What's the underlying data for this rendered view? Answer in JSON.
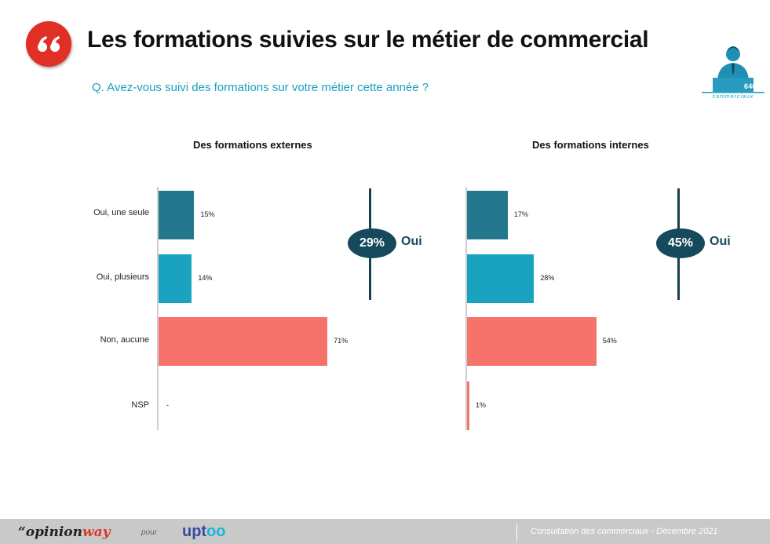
{
  "header": {
    "title": "Les formations suivies sur le métier de commercial",
    "question": "Q. Avez-vous suivi des formations sur votre métier cette année ?"
  },
  "badge": {
    "icon": "quote-icon",
    "color": "#e12f25"
  },
  "logo": {
    "icon": "business-person-icon",
    "count": "646",
    "caption": "commerciaux"
  },
  "chart_data": [
    {
      "type": "bar",
      "orientation": "horizontal",
      "title": "Des formations externes",
      "categories": [
        "Oui, une seule",
        "Oui, plusieurs",
        "Non, aucune",
        "NSP"
      ],
      "values": [
        15,
        14,
        71,
        null
      ],
      "value_labels": [
        "15%",
        "14%",
        "71%",
        "-"
      ],
      "colors": [
        "#24788d",
        "#1aa3c0",
        "#f5736a",
        "#f5736a"
      ],
      "xlim": [
        0,
        100
      ],
      "summary": {
        "value": "29%",
        "label": "Oui"
      }
    },
    {
      "type": "bar",
      "orientation": "horizontal",
      "title": "Des formations internes",
      "categories": [
        "Oui, une seule",
        "Oui, plusieurs",
        "Non, aucune",
        "NSP"
      ],
      "values": [
        17,
        28,
        54,
        1
      ],
      "value_labels": [
        "17%",
        "28%",
        "54%",
        "1%"
      ],
      "colors": [
        "#24788d",
        "#1aa3c0",
        "#f5736a",
        "#f5736a"
      ],
      "xlim": [
        0,
        100
      ],
      "summary": {
        "value": "45%",
        "label": "Oui"
      }
    }
  ],
  "footer": {
    "brand1_part1": "“opinion",
    "brand1_part2": "way",
    "pour": "pour",
    "brand2_part1": "upt",
    "brand2_part2": "oo",
    "consultation": "Consultation des commerciaux - Décembre 2021",
    "colors": {
      "opinionway_accent": "#d63b2a",
      "uptoo_primary": "#3a4ba0",
      "uptoo_accent": "#19b5d8"
    }
  }
}
